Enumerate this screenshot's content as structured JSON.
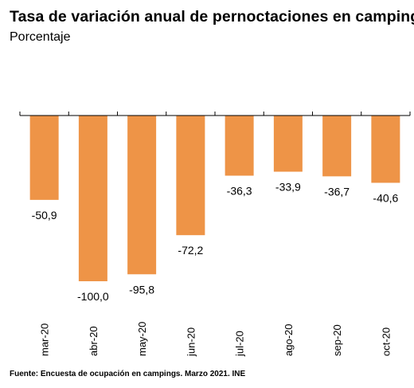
{
  "title": "Tasa de variación anual de pernoctaciones en campings",
  "subtitle": "Porcentaje",
  "source": "Fuente: Encuesta de ocupación en campings. Marzo 2021. INE",
  "colors": {
    "bar": "#ee9447",
    "axis": "#000000"
  },
  "chart_data": {
    "type": "bar",
    "categories": [
      "mar-20",
      "abr-20",
      "may-20",
      "jun-20",
      "jul-20",
      "ago-20",
      "sep-20",
      "oct-20"
    ],
    "values": [
      -50.9,
      -100.0,
      -95.8,
      -72.2,
      -36.3,
      -33.9,
      -36.7,
      -40.6
    ],
    "value_labels": [
      "-50,9",
      "-100,0",
      "-95,8",
      "-72,2",
      "-36,3",
      "-33,9",
      "-36,7",
      "-40,6"
    ],
    "ylim": [
      -100,
      0
    ],
    "grid": false,
    "legend": "none"
  }
}
